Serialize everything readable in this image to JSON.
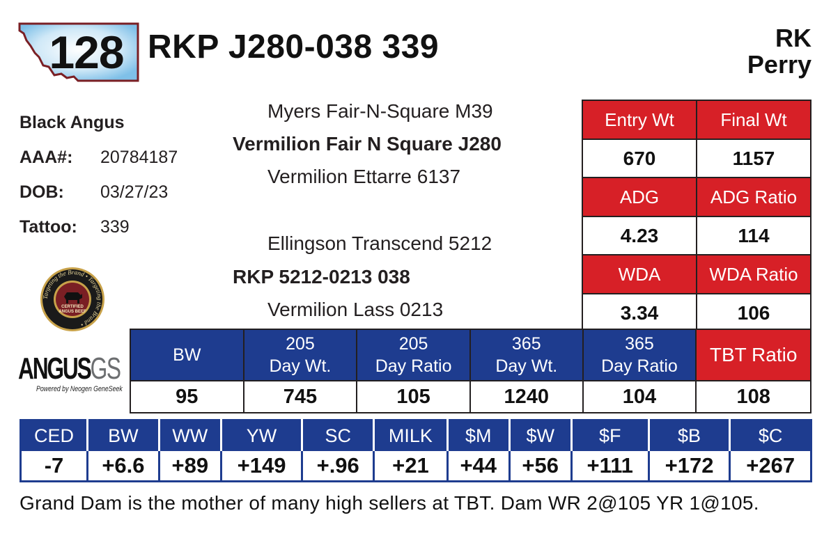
{
  "lot": "128",
  "name": "RKP J280-038 339",
  "consignor": [
    "RK",
    "Perry"
  ],
  "breed": "Black Angus",
  "info": [
    {
      "label": "AAA#:",
      "value": "20784187"
    },
    {
      "label": "DOB:",
      "value": "03/27/23"
    },
    {
      "label": "Tattoo:",
      "value": "339"
    }
  ],
  "pedigree": {
    "sire_sire": "Myers Fair-N-Square M39",
    "sire": "Vermilion Fair N Square J280",
    "sire_dam": "Vermilion Ettarre 6137",
    "dam_sire": "Ellingson Transcend 5212",
    "dam": "RKP 5212-0213 038",
    "dam_dam": "Vermilion Lass 0213"
  },
  "logos": {
    "cab_ring_text": "Targeting the Brand • Targeting the Brand •",
    "cab_lines": [
      "CERTIFIED",
      "ANGUS BEEF"
    ],
    "angus_word": "ANGUS",
    "angus_gs": "GS",
    "angus_tag": "Powered by Neogen GeneSeek"
  },
  "performance": {
    "entry_wt_label": "Entry Wt",
    "entry_wt": "670",
    "final_wt_label": "Final Wt",
    "final_wt": "1157",
    "adg_label": "ADG",
    "adg": "4.23",
    "adg_ratio_label": "ADG Ratio",
    "adg_ratio": "114",
    "wda_label": "WDA",
    "wda": "3.34",
    "wda_ratio_label": "WDA Ratio",
    "wda_ratio": "106"
  },
  "weights": {
    "headers": [
      {
        "line1": "BW",
        "line2": ""
      },
      {
        "line1": "205",
        "line2": "Day Wt."
      },
      {
        "line1": "205",
        "line2": "Day Ratio"
      },
      {
        "line1": "365",
        "line2": "Day Wt."
      },
      {
        "line1": "365",
        "line2": "Day Ratio"
      }
    ],
    "tbt_label": "TBT Ratio",
    "values": [
      "95",
      "745",
      "105",
      "1240",
      "104",
      "108"
    ]
  },
  "epd": {
    "headers": [
      "CED",
      "BW",
      "WW",
      "YW",
      "SC",
      "MILK",
      "$M",
      "$W",
      "$F",
      "$B",
      "$C"
    ],
    "values": [
      "-7",
      "+6.6",
      "+89",
      "+149",
      "+.96",
      "+21",
      "+44",
      "+56",
      "+111",
      "+172",
      "+267"
    ]
  },
  "note": "Grand Dam is the mother of many high sellers at TBT. Dam WR 2@105 YR 1@105.",
  "colors": {
    "red": "#d72027",
    "blue": "#1e3c8f",
    "badge_border": "#7a1f24"
  }
}
